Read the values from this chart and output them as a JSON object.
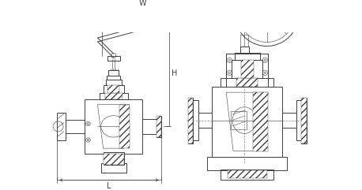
{
  "bg_color": "#ffffff",
  "line_color": "#404040",
  "dim_color": "#404040",
  "fig_width": 4.58,
  "fig_height": 2.41,
  "dpi": 100,
  "label_W": "W",
  "label_H": "H",
  "label_L": "L"
}
